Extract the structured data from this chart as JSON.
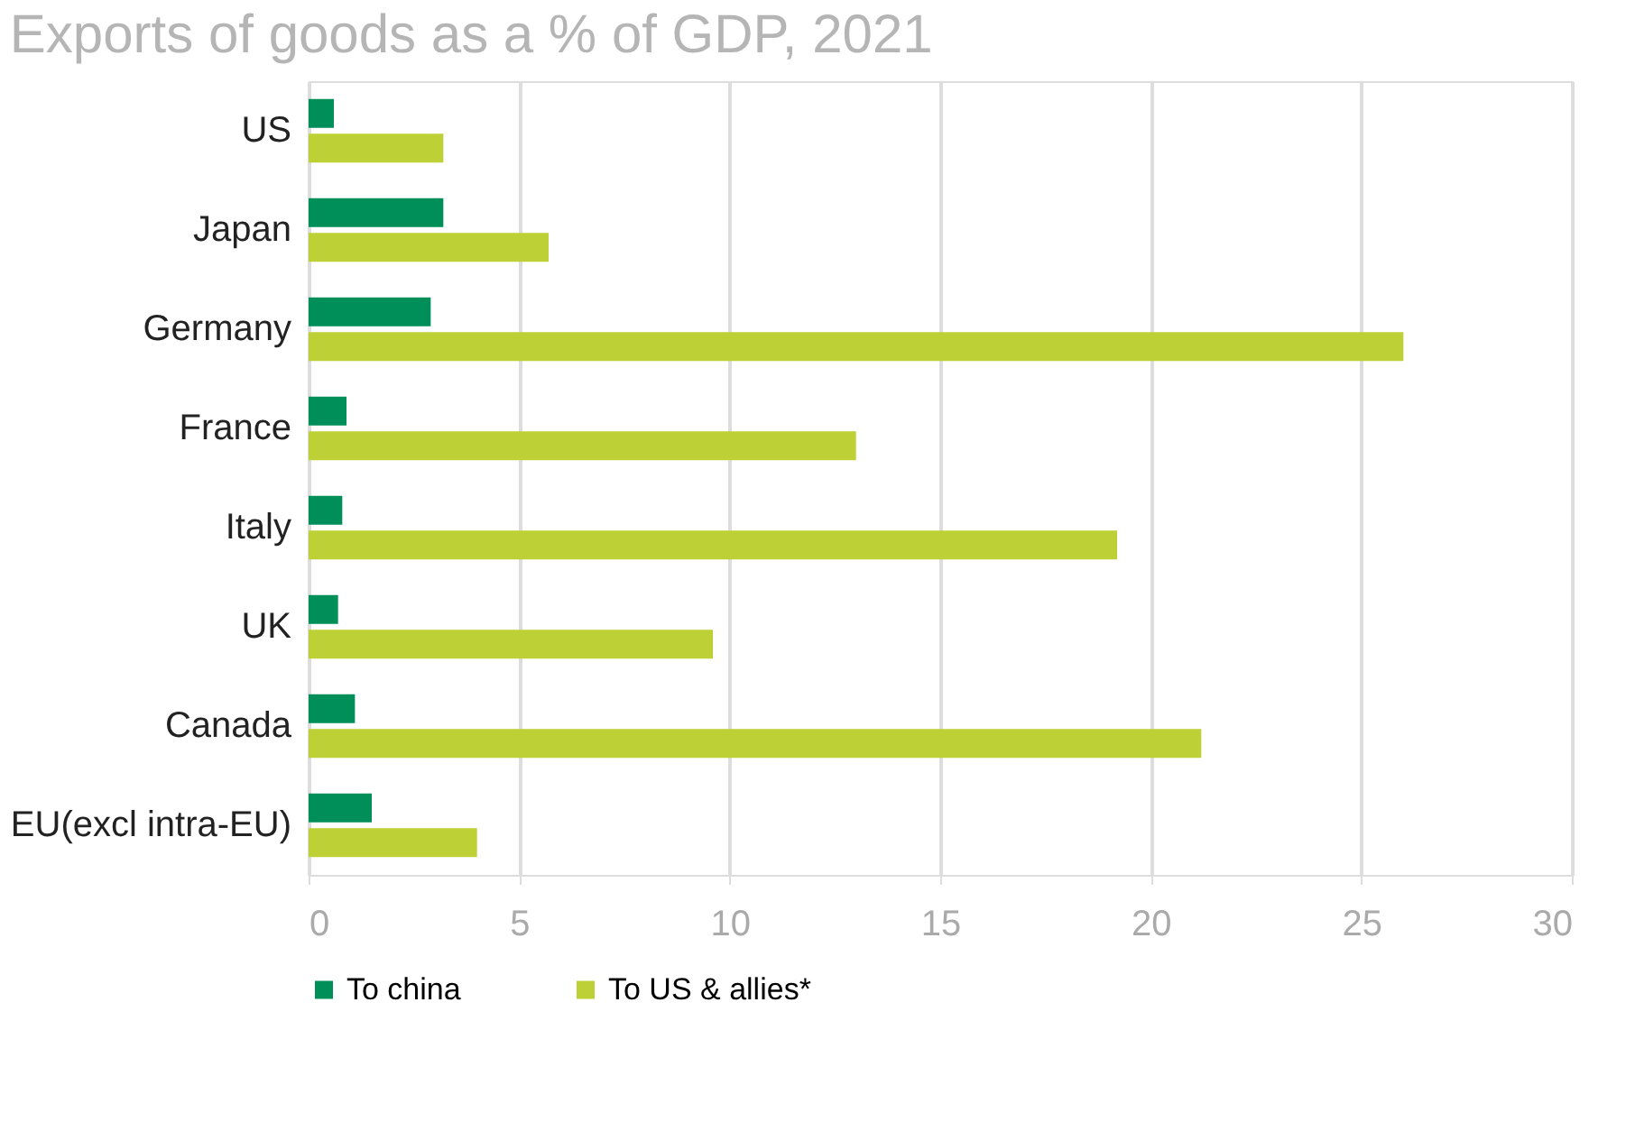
{
  "chart_data": {
    "type": "bar",
    "orientation": "horizontal",
    "title": "Exports of goods as a % of GDP, 2021",
    "categories": [
      "US",
      "Japan",
      "Germany",
      "France",
      "Italy",
      "UK",
      "Canada",
      "EU(excl intra-EU)"
    ],
    "series": [
      {
        "name": "To china",
        "color": "#008f59",
        "values": [
          0.6,
          3.2,
          2.9,
          0.9,
          0.8,
          0.7,
          1.1,
          1.5
        ]
      },
      {
        "name": "To US & allies*",
        "color": "#bdd035",
        "values": [
          3.2,
          5.7,
          26.0,
          13.0,
          19.2,
          9.6,
          21.2,
          4.0
        ]
      }
    ],
    "xlim": [
      0,
      30
    ],
    "xticks": [
      0,
      5,
      10,
      15,
      20,
      25,
      30
    ],
    "grid": "x",
    "legend": "bottom"
  }
}
